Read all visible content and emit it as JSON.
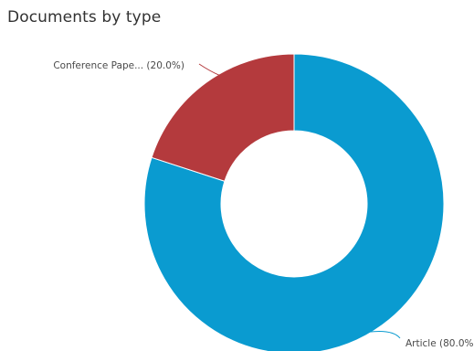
{
  "panel": {
    "title": "Documents by type"
  },
  "chart_data": {
    "type": "pie",
    "title": "Documents by type",
    "donut": true,
    "slices": [
      {
        "label": "Article (80.0%)",
        "category": "Article",
        "value": 80.0,
        "color": "#0a9bd0"
      },
      {
        "label": "Conference Pape... (20.0%)",
        "category": "Conference Paper",
        "value": 20.0,
        "color": "#b43a3d"
      }
    ],
    "legend": "none"
  }
}
